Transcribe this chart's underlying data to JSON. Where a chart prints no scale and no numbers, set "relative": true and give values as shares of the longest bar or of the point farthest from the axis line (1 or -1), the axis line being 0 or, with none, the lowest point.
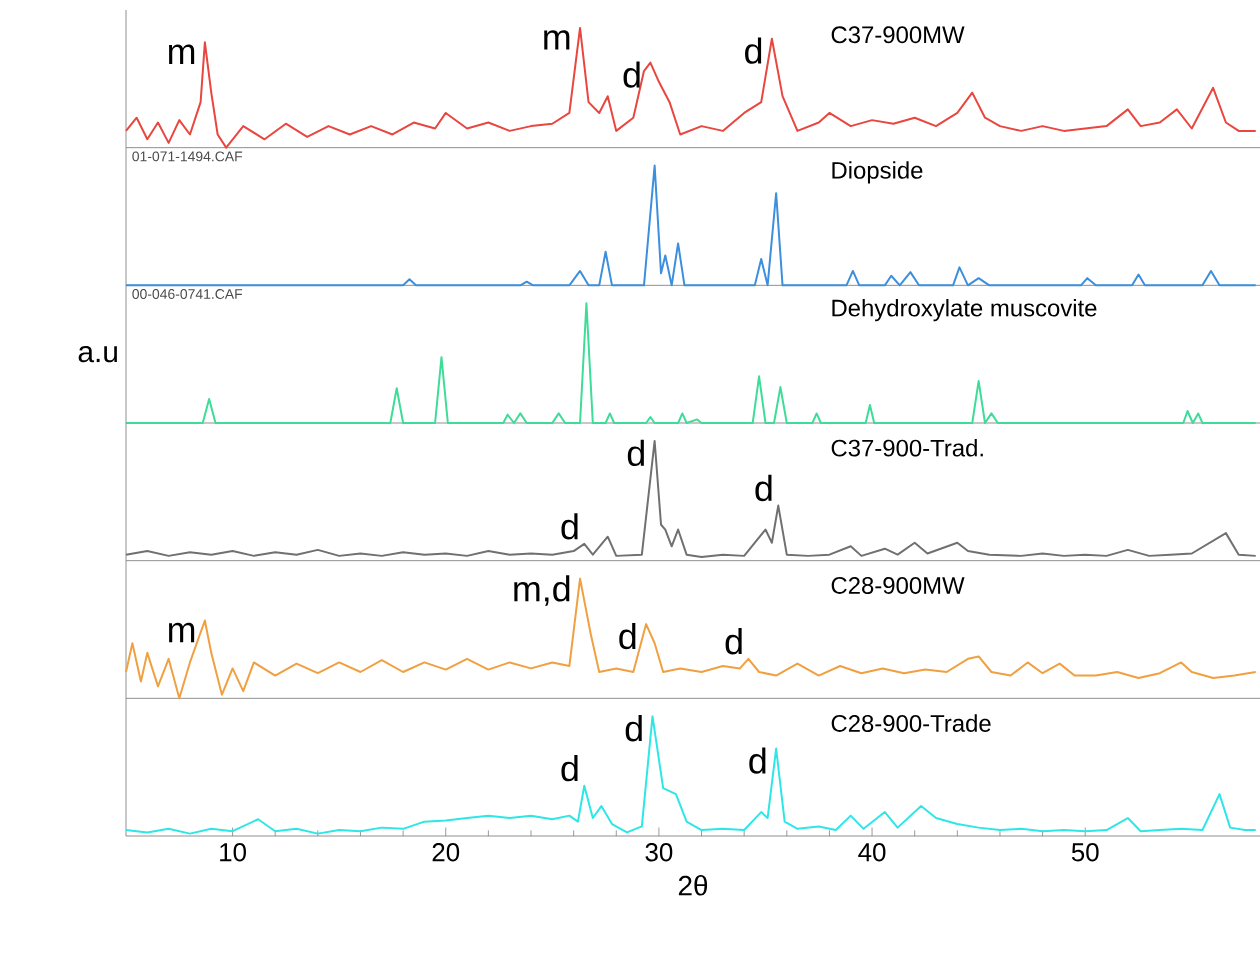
{
  "chart_data": [
    {
      "type": "line",
      "relative": true,
      "title": "C37-900MW",
      "xlim": [
        5,
        58.2
      ],
      "xticks": [
        10,
        20,
        30,
        40,
        50
      ],
      "tick_labels": false,
      "series": [
        {
          "color": "#e8463e",
          "x": [
            5,
            5.5,
            6,
            6.5,
            7,
            7.5,
            8,
            8.5,
            8.7,
            9,
            9.3,
            9.7,
            10.5,
            11.5,
            12.5,
            13.5,
            14.5,
            15.5,
            16.5,
            17.5,
            18.5,
            19.5,
            20,
            21,
            22,
            23,
            24,
            25,
            25.8,
            26.3,
            26.7,
            27.2,
            27.6,
            28,
            28.8,
            29.3,
            29.6,
            30,
            30.5,
            31,
            32,
            33,
            34,
            34.8,
            35.3,
            35.8,
            36.5,
            37.5,
            38,
            39,
            40,
            41,
            42,
            43,
            44,
            44.7,
            45.3,
            46,
            47,
            48,
            49,
            50,
            51,
            52,
            52.6,
            53.5,
            54.3,
            55,
            56,
            56.6,
            57.2,
            58
          ],
          "values": [
            0.14,
            0.25,
            0.07,
            0.21,
            0.04,
            0.23,
            0.11,
            0.38,
            0.88,
            0.46,
            0.11,
            0,
            0.18,
            0.07,
            0.2,
            0.09,
            0.18,
            0.11,
            0.18,
            0.11,
            0.21,
            0.16,
            0.29,
            0.16,
            0.21,
            0.14,
            0.18,
            0.2,
            0.29,
            1,
            0.38,
            0.29,
            0.43,
            0.14,
            0.25,
            0.64,
            0.71,
            0.55,
            0.38,
            0.11,
            0.18,
            0.14,
            0.29,
            0.38,
            0.91,
            0.43,
            0.14,
            0.21,
            0.29,
            0.18,
            0.23,
            0.2,
            0.25,
            0.18,
            0.29,
            0.46,
            0.25,
            0.18,
            0.14,
            0.18,
            0.14,
            0.16,
            0.18,
            0.32,
            0.18,
            0.21,
            0.32,
            0.16,
            0.5,
            0.21,
            0.14,
            0.14
          ]
        }
      ],
      "annotations": [
        {
          "text": "m",
          "x": 8.7,
          "y": 0.88
        },
        {
          "text": "m",
          "x": 26.3,
          "y": 1
        },
        {
          "text": "d",
          "x": 29.6,
          "y": 0.71
        },
        {
          "text": "d",
          "x": 35.3,
          "y": 0.91
        }
      ]
    },
    {
      "type": "line",
      "relative": true,
      "title": "Diopside",
      "xlim": [
        5,
        58.2
      ],
      "xticks": [
        10,
        20,
        30,
        40,
        50
      ],
      "tick_labels": false,
      "series": [
        {
          "color": "#3c8fdc",
          "x": [
            5,
            18,
            18.3,
            18.6,
            23.5,
            23.8,
            24.1,
            25.8,
            26.3,
            26.7,
            27.2,
            27.5,
            27.8,
            29.3,
            29.8,
            30.1,
            30.3,
            30.6,
            30.9,
            31.2,
            34.5,
            34.8,
            35.1,
            35.5,
            35.8,
            38.8,
            39.1,
            39.4,
            40.6,
            40.9,
            41.3,
            41.8,
            42.2,
            43.8,
            44.1,
            44.5,
            45,
            45.5,
            49.8,
            50.1,
            50.5,
            52.2,
            52.5,
            52.8,
            55.5,
            55.9,
            56.3,
            58
          ],
          "values": [
            0,
            0,
            0.05,
            0,
            0,
            0.03,
            0,
            0,
            0.12,
            0,
            0,
            0.28,
            0,
            0,
            1,
            0.1,
            0.25,
            0,
            0.35,
            0,
            0,
            0.22,
            0,
            0.77,
            0,
            0,
            0.12,
            0,
            0,
            0.08,
            0,
            0.11,
            0,
            0,
            0.15,
            0,
            0.06,
            0,
            0,
            0.06,
            0,
            0,
            0.09,
            0,
            0,
            0.12,
            0,
            0
          ]
        }
      ],
      "annotations": [
        "01-071-1494.CAF"
      ]
    },
    {
      "type": "line",
      "relative": true,
      "title": "Dehydroxylate muscovite",
      "ylabel": "a.u",
      "xlim": [
        5,
        58.2
      ],
      "xticks": [
        10,
        20,
        30,
        40,
        50
      ],
      "tick_labels": false,
      "series": [
        {
          "color": "#3ddc97",
          "x": [
            5,
            8.6,
            8.9,
            9.2,
            17.4,
            17.7,
            18,
            19.5,
            19.8,
            20.1,
            22.7,
            22.9,
            23.2,
            23.5,
            23.8,
            25,
            25.3,
            25.6,
            26.3,
            26.6,
            26.9,
            27.5,
            27.7,
            27.9,
            29.4,
            29.6,
            29.8,
            30.9,
            31.1,
            31.3,
            31.8,
            32,
            34.4,
            34.7,
            35,
            35.4,
            35.7,
            36,
            37.2,
            37.4,
            37.6,
            39.7,
            39.9,
            40.1,
            44.7,
            45,
            45.3,
            45.6,
            45.9,
            54.6,
            54.8,
            55.05,
            55.3,
            55.5,
            58
          ],
          "values": [
            0,
            0,
            0.2,
            0,
            0,
            0.29,
            0,
            0,
            0.55,
            0,
            0,
            0.07,
            0,
            0.08,
            0,
            0,
            0.08,
            0,
            0,
            1,
            0,
            0,
            0.08,
            0,
            0,
            0.05,
            0,
            0,
            0.08,
            0,
            0.03,
            0,
            0,
            0.39,
            0,
            0,
            0.3,
            0,
            0,
            0.08,
            0,
            0,
            0.15,
            0,
            0,
            0.35,
            0,
            0.08,
            0,
            0,
            0.1,
            0,
            0.08,
            0,
            0
          ]
        }
      ],
      "annotations": [
        "00-046-0741.CAF"
      ]
    },
    {
      "type": "line",
      "relative": true,
      "title": "C37-900-Trad.",
      "xlim": [
        5,
        58.2
      ],
      "xticks": [
        10,
        20,
        30,
        40,
        50
      ],
      "tick_labels": false,
      "series": [
        {
          "color": "#707070",
          "x": [
            5,
            6,
            7,
            8,
            9,
            10,
            11,
            12,
            13,
            14,
            15,
            16,
            17,
            18,
            19,
            20,
            21,
            22,
            23,
            24,
            25,
            26,
            26.5,
            26.9,
            27.6,
            28,
            29.2,
            29.8,
            30.1,
            30.3,
            30.6,
            30.9,
            31.3,
            32,
            33,
            34,
            35,
            35.3,
            35.6,
            36,
            37,
            38,
            39,
            39.5,
            40.6,
            41.2,
            42,
            42.6,
            44,
            44.5,
            45.5,
            47,
            48,
            49,
            50,
            51,
            52,
            53,
            54,
            55,
            56.6,
            57.2,
            58
          ],
          "values": [
            0.05,
            0.08,
            0.04,
            0.07,
            0.05,
            0.08,
            0.04,
            0.07,
            0.05,
            0.09,
            0.04,
            0.06,
            0.04,
            0.07,
            0.05,
            0.06,
            0.04,
            0.08,
            0.05,
            0.06,
            0.05,
            0.08,
            0.14,
            0.05,
            0.2,
            0.04,
            0.05,
            1,
            0.3,
            0.26,
            0.12,
            0.26,
            0.05,
            0.03,
            0.05,
            0.04,
            0.26,
            0.15,
            0.46,
            0.05,
            0.04,
            0.05,
            0.12,
            0.04,
            0.1,
            0.05,
            0.15,
            0.06,
            0.15,
            0.08,
            0.05,
            0.04,
            0.06,
            0.04,
            0.05,
            0.04,
            0.09,
            0.04,
            0.05,
            0.06,
            0.23,
            0.05,
            0.04
          ]
        }
      ],
      "annotations": [
        {
          "text": "d",
          "x": 26.5,
          "y": 0.14
        },
        {
          "text": "d",
          "x": 29.8,
          "y": 1
        },
        {
          "text": "d",
          "x": 35.6,
          "y": 0.46
        }
      ]
    },
    {
      "type": "line",
      "relative": true,
      "title": "C28-900MW",
      "xlim": [
        5,
        58.2
      ],
      "xticks": [
        10,
        20,
        30,
        40,
        50
      ],
      "tick_labels": false,
      "series": [
        {
          "color": "#f0a040",
          "x": [
            5,
            5.3,
            5.7,
            6,
            6.5,
            7,
            7.5,
            8,
            8.7,
            9,
            9.5,
            10,
            10.5,
            11,
            12,
            13,
            14,
            15,
            16,
            17,
            18,
            19,
            20,
            21,
            22,
            23,
            24,
            25,
            25.8,
            26.3,
            26.8,
            27.2,
            28,
            28.8,
            29.4,
            29.8,
            30.2,
            31,
            32,
            33,
            33.8,
            34.2,
            34.7,
            35.5,
            36.5,
            37.5,
            38.5,
            39.5,
            40.5,
            41.5,
            42.5,
            43.5,
            44.5,
            45,
            45.6,
            46.5,
            47.3,
            48,
            48.8,
            49.5,
            50.5,
            51.5,
            52.5,
            53.5,
            54.5,
            55,
            56,
            57,
            58
          ],
          "values": [
            0.22,
            0.46,
            0.14,
            0.38,
            0.1,
            0.33,
            0,
            0.3,
            0.65,
            0.38,
            0.03,
            0.25,
            0.06,
            0.3,
            0.19,
            0.29,
            0.21,
            0.3,
            0.22,
            0.32,
            0.22,
            0.3,
            0.24,
            0.33,
            0.24,
            0.3,
            0.25,
            0.3,
            0.27,
            1,
            0.54,
            0.22,
            0.25,
            0.22,
            0.62,
            0.46,
            0.22,
            0.25,
            0.22,
            0.27,
            0.25,
            0.33,
            0.22,
            0.19,
            0.29,
            0.19,
            0.27,
            0.21,
            0.25,
            0.21,
            0.24,
            0.22,
            0.33,
            0.35,
            0.22,
            0.19,
            0.3,
            0.21,
            0.29,
            0.19,
            0.19,
            0.22,
            0.17,
            0.21,
            0.3,
            0.22,
            0.17,
            0.19,
            0.22
          ]
        }
      ],
      "annotations": [
        {
          "text": "m",
          "x": 8.7,
          "y": 0.65
        },
        {
          "text": "m,d",
          "x": 26.3,
          "y": 1
        },
        {
          "text": "d",
          "x": 29.4,
          "y": 0.62
        },
        {
          "text": "d",
          "x": 34.2,
          "y": 0.33
        }
      ]
    },
    {
      "type": "line",
      "relative": true,
      "title": "C28-900-Trade",
      "xlabel": "2θ",
      "xlim": [
        5,
        58.2
      ],
      "xticks": [
        10,
        20,
        30,
        40,
        50
      ],
      "tick_labels": "x",
      "series": [
        {
          "color": "#2ee6e6",
          "x": [
            5,
            6,
            7,
            8,
            9,
            10,
            11.2,
            12,
            13,
            14,
            15,
            16,
            17,
            18,
            19,
            20,
            21,
            22,
            23,
            24,
            25,
            25.8,
            26.2,
            26.5,
            26.9,
            27.3,
            27.8,
            28.5,
            29.2,
            29.7,
            30.2,
            30.8,
            31.3,
            32,
            33,
            34,
            34.8,
            35.1,
            35.5,
            35.9,
            36.5,
            37.5,
            38.3,
            39,
            39.6,
            40.6,
            41.2,
            42.3,
            43,
            44,
            45,
            46,
            47,
            48,
            49,
            50,
            51,
            52,
            52.6,
            53.5,
            54.5,
            55.5,
            56.3,
            56.8,
            57.5,
            58
          ],
          "values": [
            0.05,
            0.03,
            0.06,
            0.02,
            0.06,
            0.04,
            0.14,
            0.04,
            0.06,
            0.02,
            0.05,
            0.04,
            0.07,
            0.06,
            0.12,
            0.13,
            0.15,
            0.17,
            0.15,
            0.17,
            0.14,
            0.17,
            0.12,
            0.42,
            0.15,
            0.25,
            0.1,
            0.03,
            0.08,
            1,
            0.4,
            0.35,
            0.12,
            0.05,
            0.06,
            0.05,
            0.2,
            0.15,
            0.73,
            0.12,
            0.06,
            0.08,
            0.05,
            0.17,
            0.06,
            0.2,
            0.07,
            0.25,
            0.15,
            0.1,
            0.07,
            0.05,
            0.06,
            0.04,
            0.05,
            0.04,
            0.05,
            0.15,
            0.04,
            0.05,
            0.06,
            0.05,
            0.35,
            0.07,
            0.05,
            0.05
          ]
        }
      ],
      "annotations": [
        {
          "text": "d",
          "x": 26.5,
          "y": 0.42
        },
        {
          "text": "d",
          "x": 29.7,
          "y": 1
        },
        {
          "text": "d",
          "x": 35.5,
          "y": 0.73
        }
      ]
    }
  ]
}
